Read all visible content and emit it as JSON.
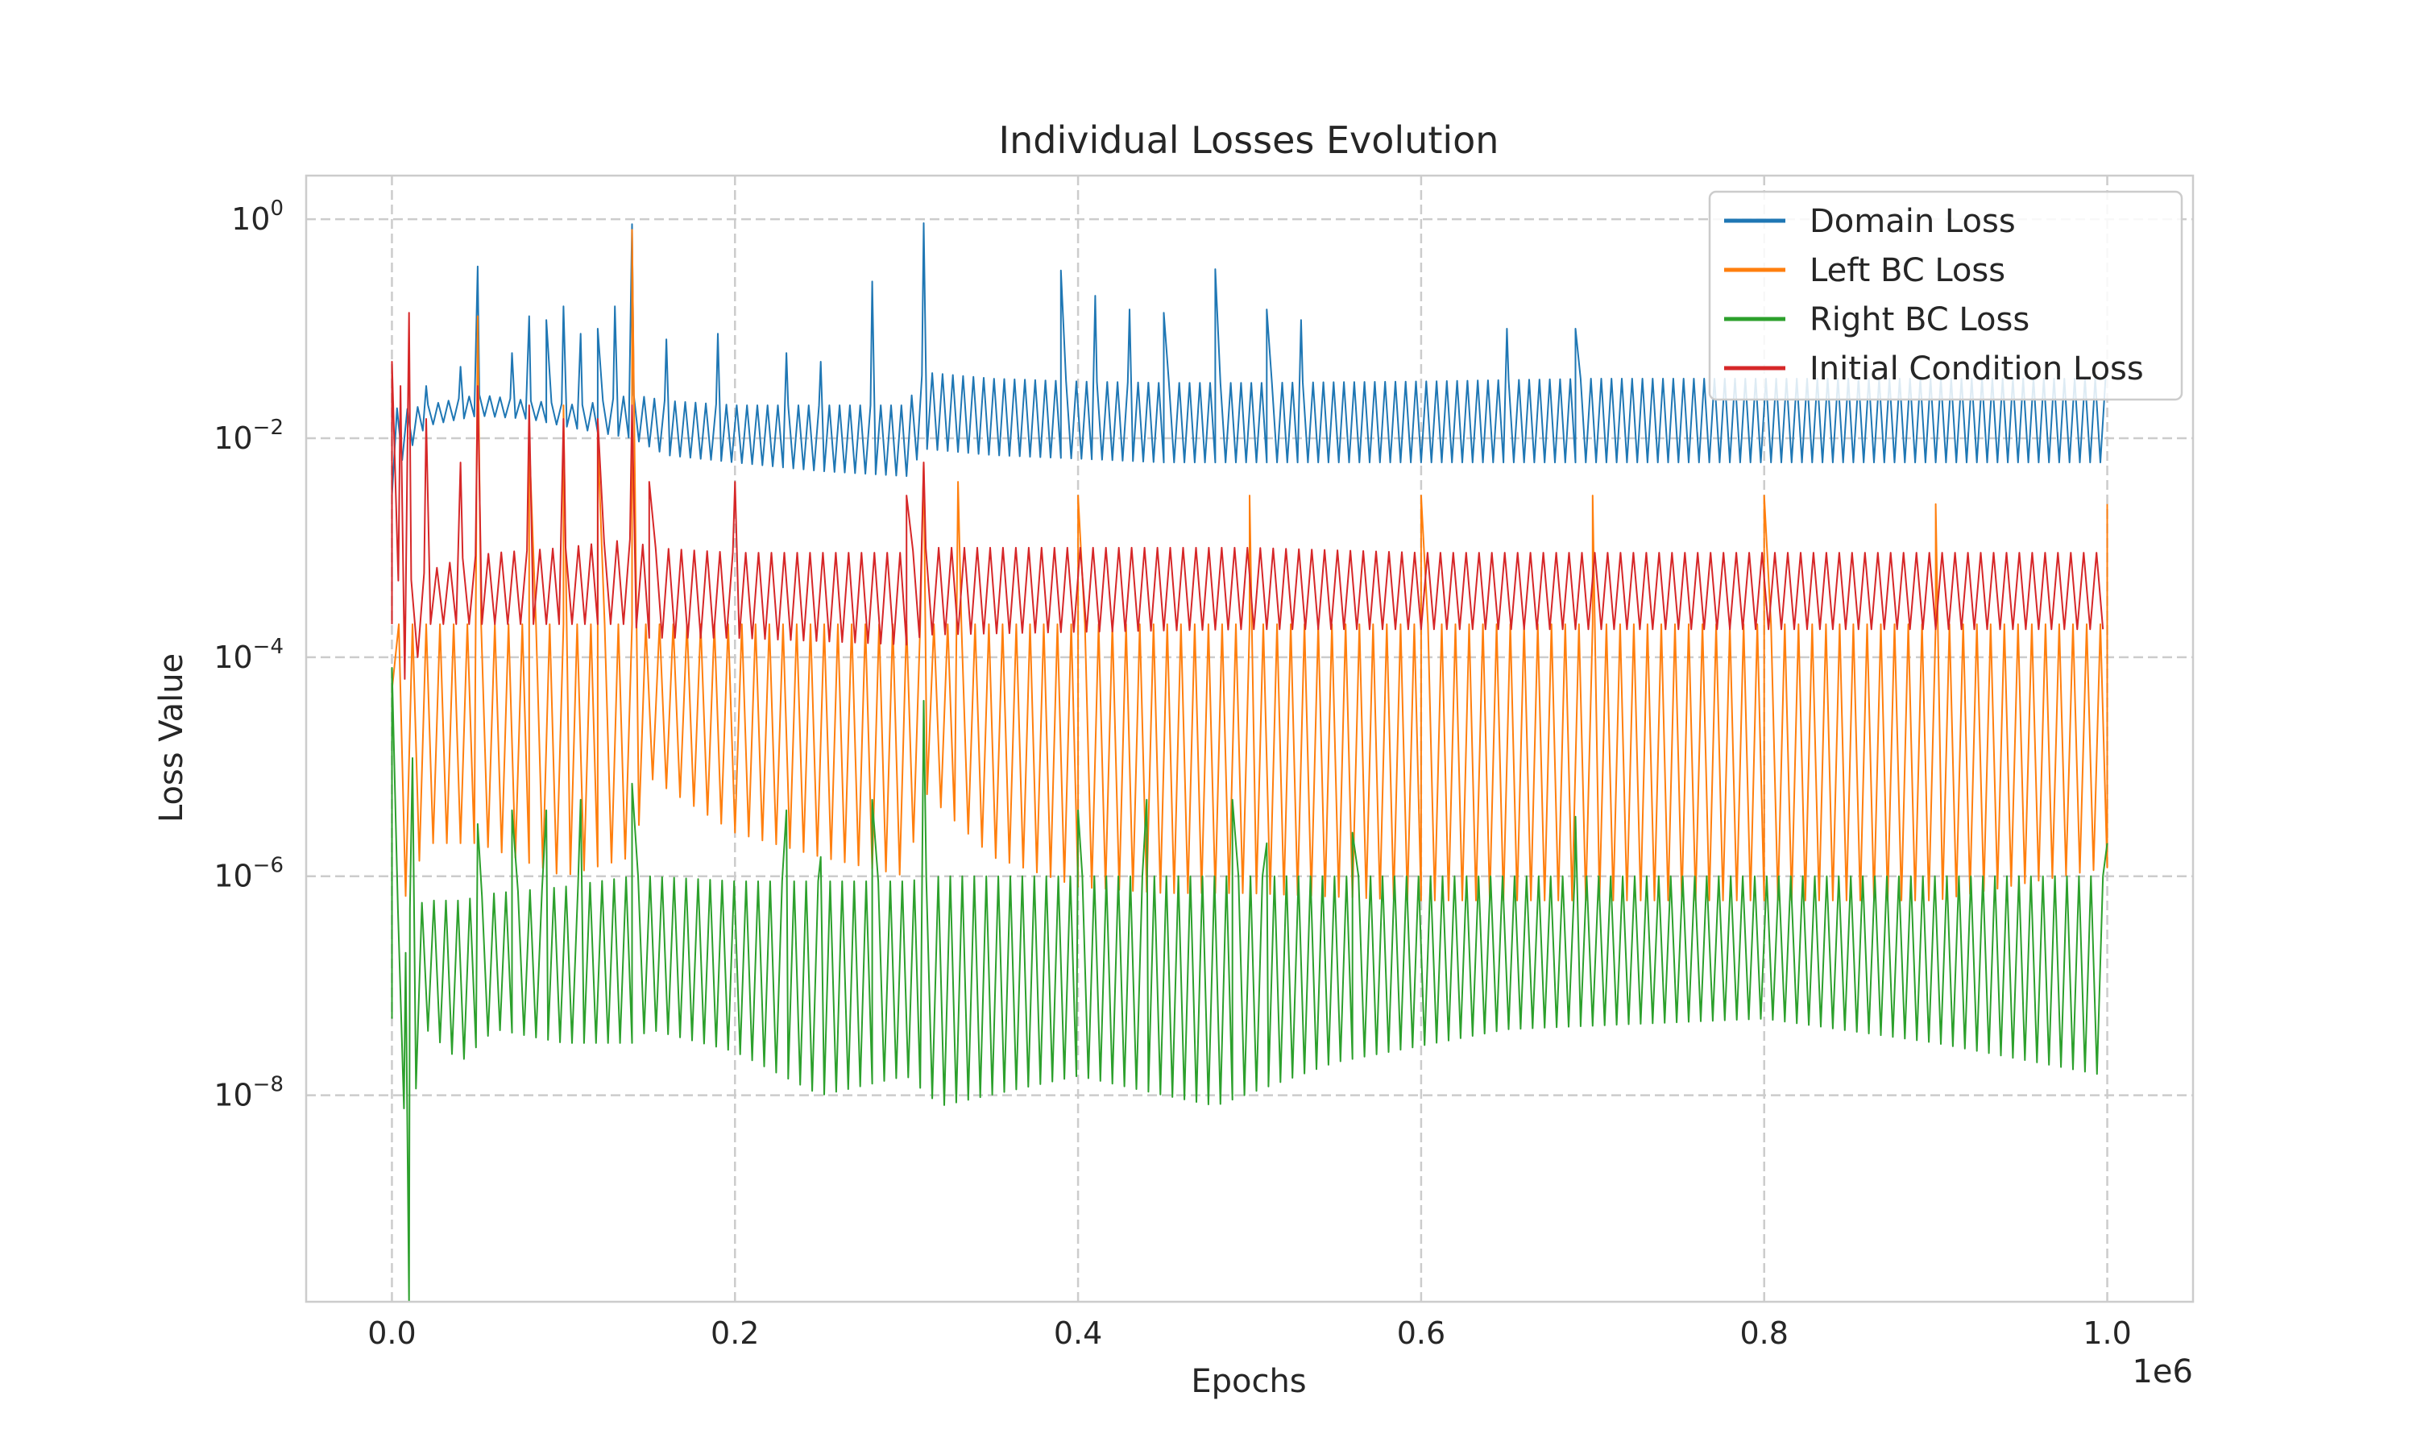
{
  "chart_data": {
    "type": "line",
    "title": "Individual Losses Evolution",
    "xlabel": "Epochs",
    "ylabel": "Loss Value",
    "x_offset_text": "1e6",
    "xscale": "linear",
    "yscale": "log",
    "xlim": [
      -50000,
      1050000
    ],
    "ylim": [
      1.3e-10,
      2.5
    ],
    "x_ticks": [
      0,
      200000,
      400000,
      600000,
      800000,
      1000000
    ],
    "x_tick_labels": [
      "0.0",
      "0.2",
      "0.4",
      "0.6",
      "0.8",
      "1.0"
    ],
    "y_ticks": [
      {
        "value": 1,
        "base": "10",
        "exp": "0"
      },
      {
        "value": 0.01,
        "base": "10",
        "exp": "−2"
      },
      {
        "value": 0.0001,
        "base": "10",
        "exp": "−4"
      },
      {
        "value": 1e-06,
        "base": "10",
        "exp": "−6"
      },
      {
        "value": 1e-08,
        "base": "10",
        "exp": "−8"
      }
    ],
    "grid": true,
    "legend_position": "top-right",
    "series": [
      {
        "name": "Domain Loss",
        "color": "#1f77b4",
        "x": [
          0,
          5000,
          20000,
          50000,
          80000,
          110000,
          140000,
          160000,
          200000,
          250000,
          300000,
          310000,
          350000,
          400000,
          450000,
          500000,
          600000,
          700000,
          800000,
          900000,
          1000000
        ],
        "low": [
          0.004,
          0.006,
          0.013,
          0.016,
          0.015,
          0.012,
          0.01,
          0.007,
          0.006,
          0.005,
          0.0045,
          0.008,
          0.007,
          0.0065,
          0.006,
          0.006,
          0.006,
          0.006,
          0.006,
          0.006,
          0.006
        ],
        "high": [
          0.02,
          0.018,
          0.02,
          0.025,
          0.022,
          0.02,
          0.025,
          0.022,
          0.02,
          0.02,
          0.02,
          0.04,
          0.035,
          0.033,
          0.032,
          0.032,
          0.033,
          0.035,
          0.035,
          0.035,
          0.035
        ],
        "period": 6000,
        "spikes": [
          [
            0,
            0.003
          ],
          [
            20000,
            0.03
          ],
          [
            40000,
            0.045
          ],
          [
            50000,
            0.37
          ],
          [
            70000,
            0.06
          ],
          [
            80000,
            0.13
          ],
          [
            90000,
            0.12
          ],
          [
            100000,
            0.16
          ],
          [
            110000,
            0.09
          ],
          [
            120000,
            0.1
          ],
          [
            130000,
            0.16
          ],
          [
            140000,
            0.9
          ],
          [
            160000,
            0.08
          ],
          [
            190000,
            0.09
          ],
          [
            230000,
            0.06
          ],
          [
            250000,
            0.05
          ],
          [
            280000,
            0.27
          ],
          [
            310000,
            0.92
          ],
          [
            390000,
            0.34
          ],
          [
            410000,
            0.2
          ],
          [
            430000,
            0.15
          ],
          [
            450000,
            0.14
          ],
          [
            480000,
            0.35
          ],
          [
            510000,
            0.15
          ],
          [
            530000,
            0.12
          ],
          [
            650000,
            0.1
          ],
          [
            690000,
            0.1
          ]
        ]
      },
      {
        "name": "Left BC Loss",
        "color": "#ff7f0e",
        "x": [
          0,
          5000,
          20000,
          50000,
          100000,
          140000,
          150000,
          200000,
          250000,
          300000,
          310000,
          350000,
          400000,
          450000,
          500000,
          600000,
          700000,
          800000,
          900000,
          1000000
        ],
        "low": [
          5e-05,
          5e-07,
          2e-06,
          2e-06,
          1e-06,
          1.5e-06,
          8e-06,
          2.5e-06,
          1.5e-06,
          1e-06,
          6e-06,
          1.5e-06,
          8e-07,
          7e-07,
          7e-07,
          6e-07,
          6e-07,
          6e-07,
          6e-07,
          1.2e-06
        ],
        "high": [
          0.0002,
          0.0002,
          0.0002,
          0.0002,
          0.0002,
          0.0002,
          0.0002,
          0.0002,
          0.0002,
          0.0002,
          0.0002,
          0.0002,
          0.0002,
          0.0002,
          0.0002,
          0.0002,
          0.0002,
          0.0002,
          0.0002,
          0.0002
        ],
        "period": 8000,
        "spikes": [
          [
            50000,
            0.13
          ],
          [
            80000,
            0.01
          ],
          [
            100000,
            0.02
          ],
          [
            120000,
            0.01
          ],
          [
            140000,
            0.8
          ],
          [
            310000,
            0.006
          ],
          [
            330000,
            0.004
          ],
          [
            400000,
            0.003
          ],
          [
            500000,
            0.003
          ],
          [
            600000,
            0.003
          ],
          [
            700000,
            0.003
          ],
          [
            800000,
            0.003
          ],
          [
            900000,
            0.0025
          ],
          [
            1000000,
            0.0025
          ]
        ]
      },
      {
        "name": "Right BC Loss",
        "color": "#2ca02c",
        "x": [
          0,
          5000,
          10000,
          20000,
          40000,
          60000,
          100000,
          140000,
          150000,
          200000,
          250000,
          300000,
          320000,
          400000,
          450000,
          480000,
          550000,
          650000,
          800000,
          900000,
          1000000
        ],
        "low": [
          5e-08,
          1e-08,
          5e-09,
          4e-08,
          2e-08,
          4e-08,
          3e-08,
          3e-08,
          4e-08,
          2.5e-08,
          1e-08,
          1.5e-08,
          8e-09,
          1.5e-08,
          1e-08,
          8e-09,
          2e-08,
          4e-08,
          5e-08,
          3e-08,
          1.5e-08
        ],
        "high": [
          5e-07,
          5e-07,
          5e-07,
          6e-07,
          6e-07,
          7e-07,
          8e-07,
          1e-06,
          1e-06,
          9e-07,
          9e-07,
          9e-07,
          1e-06,
          1e-06,
          1e-06,
          1e-06,
          1e-06,
          1e-06,
          1e-06,
          1e-06,
          1e-06
        ],
        "period": 7000,
        "spikes": [
          [
            0,
            8e-05
          ],
          [
            8000,
            2e-07
          ],
          [
            10000,
            1.3e-10
          ],
          [
            12000,
            1.2e-05
          ],
          [
            50000,
            3e-06
          ],
          [
            70000,
            4e-06
          ],
          [
            90000,
            4e-06
          ],
          [
            110000,
            5e-06
          ],
          [
            140000,
            7e-06
          ],
          [
            230000,
            4e-06
          ],
          [
            250000,
            1.5e-06
          ],
          [
            280000,
            5e-06
          ],
          [
            310000,
            4e-05
          ],
          [
            400000,
            4e-06
          ],
          [
            440000,
            5e-06
          ],
          [
            490000,
            5e-06
          ],
          [
            510000,
            2e-06
          ],
          [
            560000,
            2.5e-06
          ],
          [
            690000,
            3.5e-06
          ],
          [
            1000000,
            2e-06
          ]
        ]
      },
      {
        "name": "Initial Condition Loss",
        "color": "#d62728",
        "x": [
          0,
          5000,
          10000,
          20000,
          40000,
          60000,
          100000,
          140000,
          150000,
          200000,
          250000,
          300000,
          310000,
          400000,
          500000,
          600000,
          700000,
          800000,
          900000,
          1000000
        ],
        "low": [
          0.0002,
          8e-05,
          5e-05,
          0.0002,
          0.0002,
          0.0002,
          0.0002,
          0.0002,
          0.00015,
          0.00015,
          0.00014,
          0.00013,
          0.00016,
          0.00017,
          0.00018,
          0.00018,
          0.00018,
          0.00018,
          0.00018,
          0.00018
        ],
        "high": [
          0.0005,
          0.0005,
          0.0005,
          0.0006,
          0.0008,
          0.0009,
          0.001,
          0.0012,
          0.001,
          0.0009,
          0.0009,
          0.0009,
          0.001,
          0.001,
          0.001,
          0.0009,
          0.0009,
          0.0009,
          0.0009,
          0.0009
        ],
        "period": 7500,
        "spikes": [
          [
            0,
            0.05
          ],
          [
            5000,
            0.03
          ],
          [
            10000,
            0.14
          ],
          [
            20000,
            0.015
          ],
          [
            40000,
            0.006
          ],
          [
            50000,
            0.03
          ],
          [
            80000,
            0.02
          ],
          [
            100000,
            0.015
          ],
          [
            120000,
            0.015
          ],
          [
            140000,
            0.02
          ],
          [
            150000,
            0.004
          ],
          [
            200000,
            0.004
          ],
          [
            300000,
            0.003
          ],
          [
            310000,
            0.006
          ]
        ]
      }
    ]
  }
}
